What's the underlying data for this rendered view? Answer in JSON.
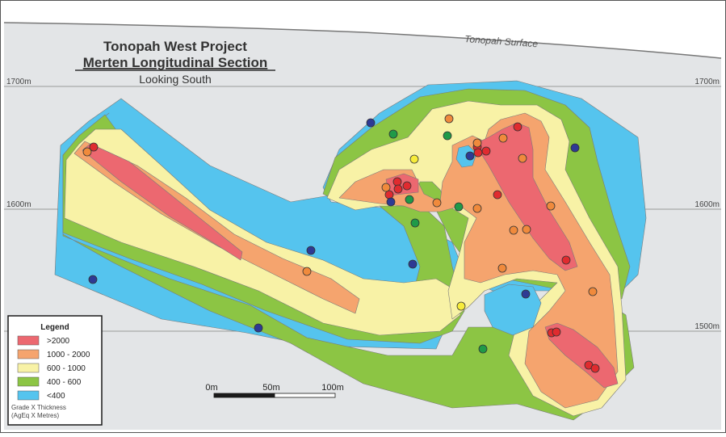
{
  "title": {
    "line1": "Tonopah West Project",
    "line2": "Merten Longitudinal Section",
    "line3": "Looking South"
  },
  "surface_label": "Tonopah Surface",
  "elevations": {
    "e1700": "1700m",
    "e1600": "1600m",
    "e1500": "1500m"
  },
  "scale_bar": {
    "labels": [
      "0m",
      "50m",
      "100m"
    ]
  },
  "legend": {
    "title": "Legend",
    "items": [
      {
        "label": ">2000",
        "color": "#ec6870"
      },
      {
        "label": "1000 - 2000",
        "color": "#f5a46e"
      },
      {
        "label": "600 - 1000",
        "color": "#f8f2a6"
      },
      {
        "label": "400 - 600",
        "color": "#8cc544"
      },
      {
        "label": "<400",
        "color": "#55c4ee"
      }
    ],
    "note_line1": "Grade X Thickness",
    "note_line2": "(AgEq X Metres)"
  },
  "colors": {
    "sky": "#ffffff",
    "ground": "#e3e5e7",
    "gt2000": "#ec6870",
    "g1000": "#f5a46e",
    "g600": "#f8f2a6",
    "g400": "#8cc544",
    "lt400": "#55c4ee",
    "hole_red": "#e02b2f",
    "hole_orange": "#f08a3c",
    "hole_yellow": "#f7ec3a",
    "hole_green": "#1f9a48",
    "hole_blue": "#2e3a94"
  },
  "drill_holes": [
    {
      "grade": ">2000"
    },
    {
      "grade": "1000 - 2000"
    },
    {
      "grade": "600 - 1000"
    },
    {
      "grade": "400 - 600"
    },
    {
      "grade": "<400"
    }
  ]
}
